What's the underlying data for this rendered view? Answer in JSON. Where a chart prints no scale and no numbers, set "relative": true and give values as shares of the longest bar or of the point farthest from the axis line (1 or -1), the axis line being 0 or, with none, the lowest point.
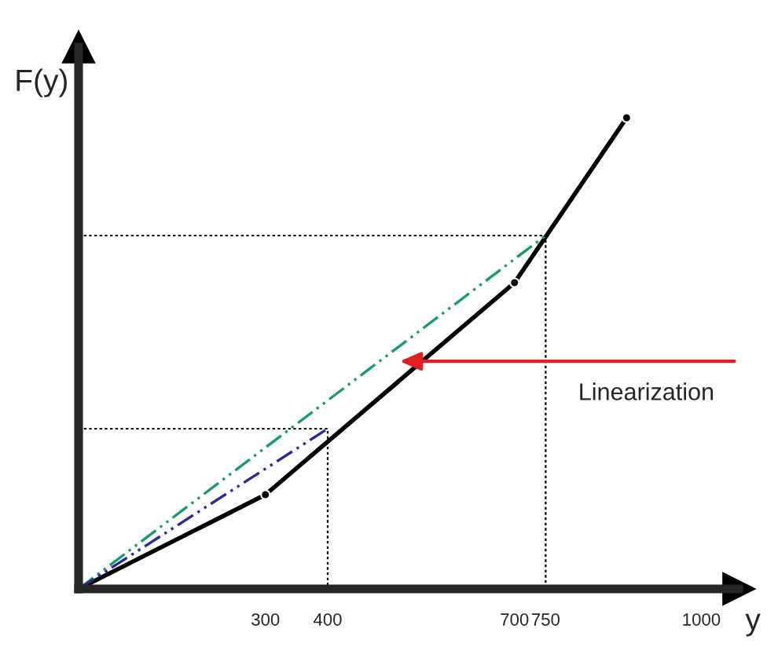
{
  "chart_data": {
    "type": "line",
    "relative": true,
    "xlabel": "y",
    "ylabel": "F(y)",
    "xlim": [
      0,
      1060
    ],
    "xticks": [
      300,
      400,
      700,
      750,
      1000
    ],
    "tick_labels": "x",
    "grid": false,
    "legend": false,
    "series": [
      {
        "color": "#000000",
        "x": [
          0,
          300,
          700,
          880
        ],
        "values": [
          0,
          0.2,
          0.65,
          1
        ],
        "marker": "circle",
        "line_style": "solid"
      },
      {
        "color": "#1a9a6a",
        "x": [
          0,
          750
        ],
        "values": [
          0,
          0.75
        ],
        "line_style": "dashed"
      },
      {
        "color": "#2a2a8a",
        "x": [
          0,
          400
        ],
        "values": [
          0,
          0.34
        ],
        "line_style": "dashed"
      },
      {
        "color": "#000000",
        "x": [
          0,
          750,
          750
        ],
        "values": [
          0.75,
          0.75,
          0
        ],
        "line_style": "dotted"
      },
      {
        "color": "#000000",
        "x": [
          0,
          400,
          400
        ],
        "values": [
          0.34,
          0.34,
          0
        ],
        "line_style": "dotted"
      }
    ],
    "annotations": [
      "Linearization"
    ]
  }
}
